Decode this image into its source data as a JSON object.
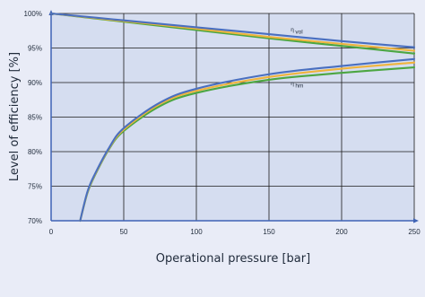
{
  "chart_data": {
    "type": "line",
    "title": "",
    "xlabel": "Operational pressure [bar]",
    "ylabel": "Level of efficiency  [%]",
    "xlim": [
      0,
      250
    ],
    "ylim": [
      70,
      100
    ],
    "xticks": [
      0,
      50,
      100,
      150,
      200,
      250
    ],
    "yticks": [
      70,
      75,
      80,
      85,
      90,
      95,
      100
    ],
    "xtick_labels": [
      "0",
      "50",
      "100",
      "150",
      "200",
      "250"
    ],
    "ytick_labels": [
      "70%",
      "75%",
      "80%",
      "85%",
      "90%",
      "95%",
      "100%"
    ],
    "grid": true,
    "legend": "none",
    "annotations": [
      {
        "text": "η",
        "sub": "vol",
        "x": 165,
        "y": 97.4
      },
      {
        "text": "η",
        "sub": "hm",
        "x": 165,
        "y": 89.6
      }
    ],
    "series": [
      {
        "color": "#4a6fbf",
        "x": [
          0,
          50,
          100,
          150,
          200,
          250
        ],
        "y": [
          100,
          99.0,
          98.0,
          97.0,
          96.0,
          95.1
        ]
      },
      {
        "color": "#f0b43c",
        "x": [
          0,
          50,
          100,
          150,
          200,
          250
        ],
        "y": [
          100,
          98.9,
          97.8,
          96.6,
          95.6,
          94.6
        ]
      },
      {
        "color": "#4ca642",
        "x": [
          0,
          50,
          100,
          150,
          200,
          250
        ],
        "y": [
          100,
          98.8,
          97.6,
          96.4,
          95.3,
          94.2
        ]
      },
      {
        "color": "#4a6fbf",
        "x": [
          20,
          25,
          30,
          40,
          50,
          75,
          100,
          150,
          200,
          250
        ],
        "y": [
          70.0,
          74.2,
          76.7,
          80.6,
          83.4,
          87.1,
          89.1,
          91.2,
          92.4,
          93.4
        ]
      },
      {
        "color": "#f0b43c",
        "x": [
          20,
          25,
          30,
          40,
          50,
          75,
          100,
          150,
          200,
          250
        ],
        "y": [
          70.0,
          74.1,
          76.6,
          80.5,
          83.2,
          86.9,
          88.8,
          90.8,
          92.0,
          92.9
        ]
      },
      {
        "color": "#4ca642",
        "x": [
          20,
          25,
          30,
          40,
          50,
          75,
          100,
          150,
          200,
          250
        ],
        "y": [
          70.0,
          74.0,
          76.5,
          80.4,
          83.0,
          86.6,
          88.5,
          90.4,
          91.4,
          92.2
        ]
      }
    ]
  }
}
